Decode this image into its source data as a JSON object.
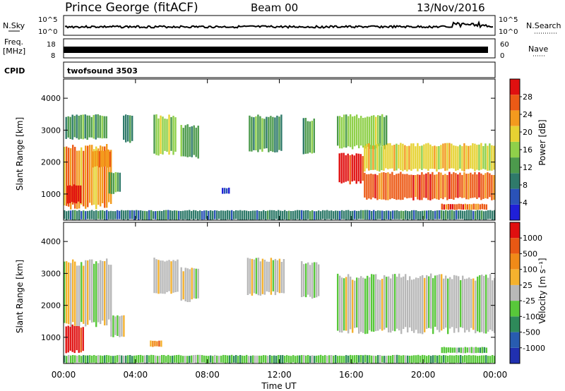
{
  "header": {
    "title": "Prince George (fitACF)",
    "beam": "Beam 00",
    "date": "13/Nov/2016"
  },
  "strips": {
    "left_nsky": "N.Sky",
    "left_freq_line1": "Freq.",
    "left_freq_line2": "[MHz]",
    "left_cpid": "CPID",
    "right_nsearch": "N.Search",
    "right_nave": "Nave",
    "noise_ticks_left": [
      "10^5",
      "10^0"
    ],
    "noise_ticks_right": [
      "10^5",
      "10^0"
    ],
    "freq_ticks": [
      "18",
      "8"
    ],
    "nave_ticks": [
      "60",
      "0"
    ],
    "cpid_label": "twofsound 3503"
  },
  "colors": {
    "power_scale": [
      "#1f1fd8",
      "#2a52b8",
      "#2f7a6a",
      "#4c9a4c",
      "#8fd04a",
      "#e6d232",
      "#f39a1e",
      "#ec5a16",
      "#e01010"
    ],
    "velocity_scale": [
      "#2030b0",
      "#285cb0",
      "#2e8a5a",
      "#58c83a",
      "#b8b8b8",
      "#f5b22e",
      "#f08a18",
      "#e85814",
      "#e01010"
    ]
  },
  "chart_data": [
    {
      "type": "heatmap",
      "name": "power",
      "ylabel": "Slant Range [km]",
      "xlabel": "",
      "colorbar_label": "Power [dB]",
      "colorbar_ticks": [
        "28",
        "24",
        "20",
        "16",
        "12",
        "8",
        "4"
      ],
      "x_ticks": [
        "00:00",
        "04:00",
        "08:00",
        "12:00",
        "16:00",
        "20:00",
        "00:00"
      ],
      "y_ticks": [
        "4000",
        "3000",
        "2000",
        "1000"
      ],
      "xlim": [
        0,
        24
      ],
      "ylim": [
        180,
        4600
      ],
      "regions": [
        {
          "x0": 0.0,
          "x1": 2.6,
          "y0": 500,
          "y1": 2600,
          "level": 6
        },
        {
          "x0": 0.2,
          "x1": 1.0,
          "y0": 700,
          "y1": 1300,
          "level": 8
        },
        {
          "x0": 0.1,
          "x1": 2.4,
          "y0": 2700,
          "y1": 3500,
          "level": 3
        },
        {
          "x0": 1.6,
          "x1": 2.6,
          "y0": 1800,
          "y1": 2400,
          "level": 6
        },
        {
          "x0": 2.5,
          "x1": 3.2,
          "y0": 1000,
          "y1": 1700,
          "level": 3
        },
        {
          "x0": 3.3,
          "x1": 3.8,
          "y0": 2600,
          "y1": 3500,
          "level": 2
        },
        {
          "x0": 5.0,
          "x1": 6.2,
          "y0": 2200,
          "y1": 3500,
          "level": 4
        },
        {
          "x0": 6.5,
          "x1": 7.5,
          "y0": 2100,
          "y1": 3200,
          "level": 3
        },
        {
          "x0": 8.8,
          "x1": 9.2,
          "y0": 1000,
          "y1": 1200,
          "level": 1
        },
        {
          "x0": 10.3,
          "x1": 12.1,
          "y0": 2300,
          "y1": 3500,
          "level": 3
        },
        {
          "x0": 13.3,
          "x1": 14.0,
          "y0": 2200,
          "y1": 3400,
          "level": 3
        },
        {
          "x0": 15.2,
          "x1": 18.0,
          "y0": 2400,
          "y1": 3500,
          "level": 4
        },
        {
          "x0": 15.3,
          "x1": 16.7,
          "y0": 1300,
          "y1": 2300,
          "level": 8
        },
        {
          "x0": 16.7,
          "x1": 24.0,
          "y0": 800,
          "y1": 1700,
          "level": 7
        },
        {
          "x0": 16.7,
          "x1": 24.0,
          "y0": 1700,
          "y1": 2600,
          "level": 5
        },
        {
          "x0": 21.0,
          "x1": 23.5,
          "y0": 500,
          "y1": 700,
          "level": 7
        },
        {
          "x0": 0.0,
          "x1": 24.0,
          "y0": 180,
          "y1": 500,
          "level": 2
        }
      ]
    },
    {
      "type": "heatmap",
      "name": "velocity",
      "ylabel": "Slant Range [km]",
      "xlabel": "Time UT",
      "colorbar_label": "Velocity [m s⁻¹]",
      "colorbar_ticks": [
        "1000",
        "500",
        "100",
        "25",
        "-25",
        "-100",
        "-500",
        "-1000"
      ],
      "x_ticks": [
        "00:00",
        "04:00",
        "08:00",
        "12:00",
        "16:00",
        "20:00",
        "00:00"
      ],
      "y_ticks": [
        "4000",
        "3000",
        "2000",
        "1000"
      ],
      "xlim": [
        0,
        24
      ],
      "ylim": [
        180,
        4600
      ],
      "regions": [
        {
          "x0": 0.0,
          "x1": 2.6,
          "y0": 1300,
          "y1": 3500,
          "level": 4
        },
        {
          "x0": 0.1,
          "x1": 1.1,
          "y0": 500,
          "y1": 1400,
          "level": 8
        },
        {
          "x0": 2.6,
          "x1": 3.4,
          "y0": 1000,
          "y1": 1700,
          "level": 4
        },
        {
          "x0": 4.8,
          "x1": 5.4,
          "y0": 700,
          "y1": 900,
          "level": 6
        },
        {
          "x0": 5.0,
          "x1": 6.4,
          "y0": 2300,
          "y1": 3500,
          "level": 4
        },
        {
          "x0": 6.5,
          "x1": 7.5,
          "y0": 2100,
          "y1": 3200,
          "level": 4
        },
        {
          "x0": 10.2,
          "x1": 12.3,
          "y0": 2300,
          "y1": 3500,
          "level": 4
        },
        {
          "x0": 13.2,
          "x1": 14.2,
          "y0": 2200,
          "y1": 3400,
          "level": 4
        },
        {
          "x0": 15.2,
          "x1": 24.0,
          "y0": 1100,
          "y1": 3000,
          "level": 4
        },
        {
          "x0": 21.0,
          "x1": 23.5,
          "y0": 500,
          "y1": 700,
          "level": 3
        },
        {
          "x0": 0.0,
          "x1": 24.0,
          "y0": 180,
          "y1": 450,
          "level": 3
        }
      ]
    }
  ]
}
